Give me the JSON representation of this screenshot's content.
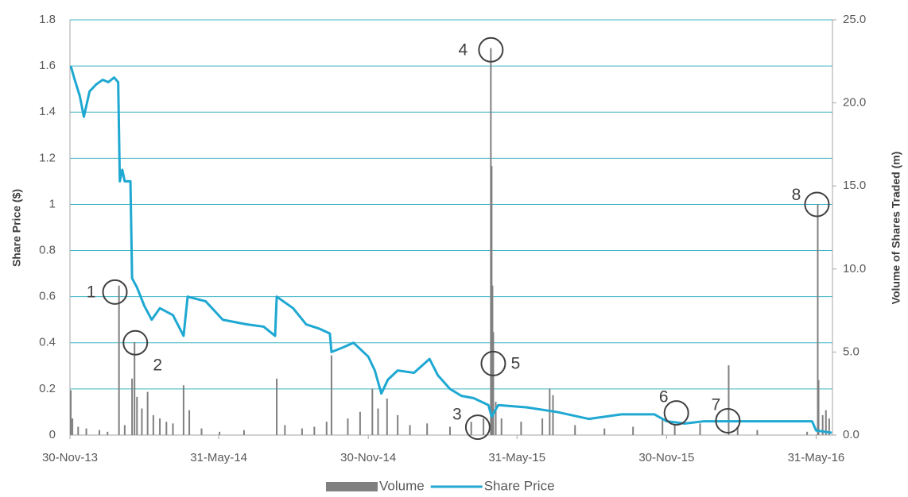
{
  "chart_data": {
    "type": "bar-line",
    "xlim": [
      "2013-11-30",
      "2016-06-20"
    ],
    "xticks": [
      {
        "value": "2013-11-30",
        "label": "30-Nov-13"
      },
      {
        "value": "2014-05-31",
        "label": "31-May-14"
      },
      {
        "value": "2014-11-30",
        "label": "30-Nov-14"
      },
      {
        "value": "2015-05-31",
        "label": "31-May-15"
      },
      {
        "value": "2015-11-30",
        "label": "30-Nov-15"
      },
      {
        "value": "2016-05-31",
        "label": "31-May-16"
      }
    ],
    "ylabel": "Share Price ($)",
    "ylim": [
      0,
      1.8
    ],
    "yticks": [
      0,
      0.2,
      0.4,
      0.6,
      0.8,
      1,
      1.2,
      1.4,
      1.6,
      1.8
    ],
    "y2label": "Volume of Shares Traded (m)",
    "y2lim": [
      0,
      25
    ],
    "y2ticks": [
      {
        "value": 0,
        "label": "0.0"
      },
      {
        "value": 5,
        "label": "5.0"
      },
      {
        "value": 10,
        "label": "10.0"
      },
      {
        "value": 15,
        "label": "15.0"
      },
      {
        "value": 20,
        "label": "20.0"
      },
      {
        "value": 25,
        "label": "25.0"
      }
    ],
    "grid": true,
    "grid_color": "#3cb4c4",
    "legend": "bottom",
    "series": [
      {
        "name": "Volume",
        "type": "bar",
        "axis": "y2",
        "color": "#808080",
        "x": [
          "2013-12-01",
          "2013-12-03",
          "2013-12-10",
          "2013-12-20",
          "2014-01-05",
          "2014-01-15",
          "2014-01-29",
          "2014-02-05",
          "2014-02-14",
          "2014-02-17",
          "2014-02-20",
          "2014-02-26",
          "2014-03-05",
          "2014-03-12",
          "2014-03-20",
          "2014-03-28",
          "2014-04-05",
          "2014-04-18",
          "2014-04-25",
          "2014-05-10",
          "2014-06-01",
          "2014-07-01",
          "2014-08-10",
          "2014-08-20",
          "2014-09-10",
          "2014-09-25",
          "2014-10-10",
          "2014-10-16",
          "2014-11-05",
          "2014-11-20",
          "2014-12-05",
          "2014-12-12",
          "2014-12-23",
          "2015-01-05",
          "2015-01-20",
          "2015-02-10",
          "2015-03-10",
          "2015-04-05",
          "2015-04-20",
          "2015-04-29",
          "2015-04-30",
          "2015-05-01",
          "2015-05-02",
          "2015-05-05",
          "2015-05-12",
          "2015-06-05",
          "2015-07-01",
          "2015-07-10",
          "2015-07-14",
          "2015-08-10",
          "2015-09-15",
          "2015-10-20",
          "2015-11-25",
          "2015-12-10",
          "2016-01-10",
          "2016-02-14",
          "2016-02-25",
          "2016-03-20",
          "2016-05-20",
          "2016-06-02",
          "2016-06-03",
          "2016-06-08",
          "2016-06-12",
          "2016-06-16"
        ],
        "values": [
          2.7,
          1.0,
          0.5,
          0.4,
          0.3,
          0.2,
          9.0,
          0.6,
          3.4,
          5.6,
          2.3,
          1.6,
          2.6,
          1.2,
          1.0,
          0.8,
          0.7,
          3.0,
          1.5,
          0.4,
          0.2,
          0.3,
          3.4,
          0.6,
          0.4,
          0.5,
          0.8,
          4.8,
          1.0,
          1.4,
          2.8,
          1.6,
          2.2,
          1.2,
          0.6,
          0.7,
          0.5,
          0.8,
          1.0,
          23.3,
          16.2,
          9.0,
          6.2,
          2.0,
          1.0,
          0.8,
          1.0,
          2.8,
          2.4,
          0.6,
          0.4,
          0.5,
          0.9,
          0.6,
          0.7,
          4.2,
          0.5,
          0.3,
          0.2,
          13.9,
          3.3,
          1.2,
          1.5,
          1.0
        ]
      },
      {
        "name": "Share Price",
        "type": "line",
        "axis": "y",
        "color": "#1ea8d2",
        "x": [
          "2013-12-01",
          "2013-12-05",
          "2013-12-12",
          "2013-12-17",
          "2013-12-24",
          "2014-01-01",
          "2014-01-09",
          "2014-01-16",
          "2014-01-23",
          "2014-01-28",
          "2014-01-30",
          "2014-02-02",
          "2014-02-05",
          "2014-02-12",
          "2014-02-14",
          "2014-02-20",
          "2014-03-01",
          "2014-03-10",
          "2014-03-20",
          "2014-04-05",
          "2014-04-18",
          "2014-04-23",
          "2014-05-15",
          "2014-06-05",
          "2014-07-04",
          "2014-07-25",
          "2014-08-08",
          "2014-08-10",
          "2014-08-30",
          "2014-09-15",
          "2014-10-02",
          "2014-10-14",
          "2014-10-16",
          "2014-10-30",
          "2014-11-12",
          "2014-11-30",
          "2014-12-08",
          "2014-12-16",
          "2014-12-24",
          "2015-01-05",
          "2015-01-25",
          "2015-02-13",
          "2015-02-23",
          "2015-03-10",
          "2015-03-24",
          "2015-04-08",
          "2015-04-26",
          "2015-04-30",
          "2015-05-08",
          "2015-06-12",
          "2015-07-19",
          "2015-08-27",
          "2015-10-06",
          "2015-11-15",
          "2015-11-30",
          "2015-12-22",
          "2016-01-15",
          "2016-05-26",
          "2016-05-31",
          "2016-06-19"
        ],
        "values": [
          1.6,
          1.55,
          1.47,
          1.38,
          1.49,
          1.52,
          1.54,
          1.53,
          1.55,
          1.53,
          1.1,
          1.15,
          1.1,
          1.1,
          0.68,
          0.64,
          0.56,
          0.5,
          0.55,
          0.52,
          0.43,
          0.6,
          0.58,
          0.5,
          0.48,
          0.47,
          0.43,
          0.6,
          0.55,
          0.48,
          0.46,
          0.44,
          0.36,
          0.38,
          0.4,
          0.34,
          0.28,
          0.18,
          0.24,
          0.28,
          0.27,
          0.33,
          0.26,
          0.2,
          0.17,
          0.16,
          0.13,
          0.08,
          0.13,
          0.12,
          0.1,
          0.07,
          0.09,
          0.09,
          0.06,
          0.05,
          0.06,
          0.06,
          0.02,
          0.01
        ]
      }
    ],
    "annotations": [
      {
        "label": "1",
        "x": "2014-01-24",
        "y": 0.62
      },
      {
        "label": "2",
        "x": "2014-02-18",
        "y": 0.4
      },
      {
        "label": "3",
        "x": "2015-04-13",
        "y": 0.034
      },
      {
        "label": "4",
        "x": "2015-04-29",
        "y": 1.67
      },
      {
        "label": "5",
        "x": "2015-05-02",
        "y": 0.31
      },
      {
        "label": "6",
        "x": "2015-12-12",
        "y": 0.096
      },
      {
        "label": "7",
        "x": "2016-02-13",
        "y": 0.062
      },
      {
        "label": "8",
        "x": "2016-06-01",
        "y": 1.0
      }
    ]
  }
}
